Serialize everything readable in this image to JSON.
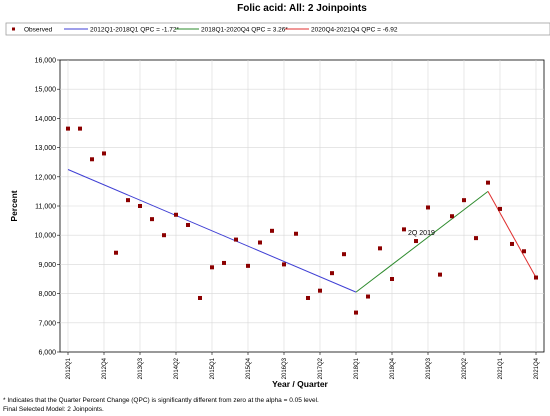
{
  "chart_data": {
    "type": "scatter",
    "title": "Folic acid: All: 2 Joinpoints",
    "xlabel": "Year / Quarter",
    "ylabel": "Percent",
    "ylim": [
      6000,
      16000
    ],
    "yticks": [
      "6,000",
      "7,000",
      "8,000",
      "9,000",
      "10,000",
      "11,000",
      "12,000",
      "13,000",
      "14,000",
      "15,000",
      "16,000"
    ],
    "xticks": [
      "2012Q1",
      "2012Q4",
      "2013Q3",
      "2014Q2",
      "2015Q1",
      "2015Q4",
      "2016Q3",
      "2017Q2",
      "2018Q1",
      "2018Q4",
      "2019Q3",
      "2020Q2",
      "2021Q1",
      "2021Q4"
    ],
    "grid": true,
    "legend_position": "top",
    "observed": {
      "name": "Observed",
      "color": "#8b0000",
      "x": [
        "2012Q1",
        "2012Q2",
        "2012Q3",
        "2012Q4",
        "2013Q1",
        "2013Q2",
        "2013Q3",
        "2013Q4",
        "2014Q1",
        "2014Q2",
        "2014Q3",
        "2014Q4",
        "2015Q1",
        "2015Q2",
        "2015Q3",
        "2015Q4",
        "2016Q1",
        "2016Q2",
        "2016Q3",
        "2016Q4",
        "2017Q1",
        "2017Q2",
        "2017Q3",
        "2017Q4",
        "2018Q1",
        "2018Q2",
        "2018Q3",
        "2018Q4",
        "2019Q1",
        "2019Q2",
        "2019Q3",
        "2019Q4",
        "2020Q1",
        "2020Q2",
        "2020Q3",
        "2020Q4",
        "2021Q1",
        "2021Q2",
        "2021Q3",
        "2021Q4"
      ],
      "y": [
        13650,
        13650,
        12600,
        12800,
        9400,
        11200,
        11000,
        10550,
        10000,
        10700,
        10350,
        7850,
        8900,
        9050,
        9850,
        8950,
        9750,
        10150,
        9000,
        10050,
        7850,
        8100,
        8700,
        9350,
        7350,
        7900,
        9550,
        8500,
        10200,
        9800,
        10950,
        8650,
        10650,
        11200,
        9900,
        11800,
        10900,
        9700,
        9450,
        8550
      ]
    },
    "segments": [
      {
        "name": "2012Q1-2018Q1 QPC = -1.72*",
        "color": "#3f3fd4",
        "x": [
          "2012Q1",
          "2018Q1"
        ],
        "y": [
          12250,
          8050
        ]
      },
      {
        "name": "2018Q1-2020Q4 QPC = 3.26*",
        "color": "#2e8b2e",
        "x": [
          "2018Q1",
          "2020Q4"
        ],
        "y": [
          8050,
          11500
        ]
      },
      {
        "name": "2020Q4-2021Q4 QPC = -6.92",
        "color": "#e03030",
        "x": [
          "2020Q4",
          "2021Q4"
        ],
        "y": [
          11500,
          8550
        ]
      }
    ],
    "annotation": {
      "text": "2Q 2019",
      "x": "2019Q2",
      "y": 10150
    },
    "footnotes": [
      "* Indicates that the Quarter Percent Change (QPC) is significantly different from zero at the alpha = 0.05 level.",
      "Final Selected Model: 2 Joinpoints."
    ]
  }
}
